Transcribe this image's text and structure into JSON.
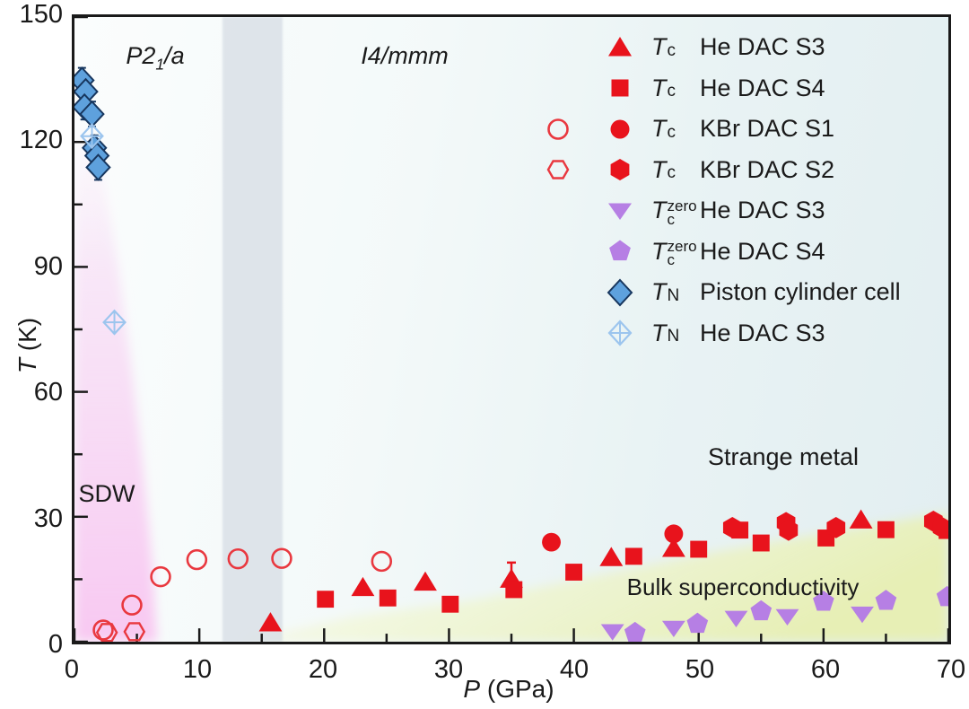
{
  "axes": {
    "x_letter": "P",
    "x_rest": " (GPa)",
    "y_letter": "T",
    "y_rest": " (K)",
    "xlim": [
      0,
      70
    ],
    "ylim": [
      0,
      150
    ],
    "x_major_ticks": [
      0,
      10,
      20,
      30,
      40,
      50,
      60,
      70
    ],
    "x_minor_ticks": [
      5,
      15,
      25,
      35,
      45,
      55,
      65
    ],
    "y_major_ticks": [
      0,
      30,
      60,
      90,
      120,
      150
    ],
    "y_minor_ticks": [
      15,
      45,
      75,
      105,
      135
    ]
  },
  "phases": {
    "p21a_pre": "P2",
    "p21a_sub": "1",
    "p21a_post": "/a",
    "i4mmm": "I4/mmm",
    "sdw": "SDW",
    "strange_metal": "Strange metal",
    "bulk_sc": "Bulk superconductivity"
  },
  "colors": {
    "red": "#e8131c",
    "red_open": "#e9383f",
    "purple": "#b67fe4",
    "blue_fill": "#5ea1dd",
    "blue_stroke": "#17365e",
    "light_blue": "#9cc5ee",
    "gray_band": "#ccd3dc",
    "axis": "#1a1a1a"
  },
  "legend": [
    {
      "open_marker": null,
      "marker": "triangle-up",
      "fill": "#e8131c",
      "stroke": "none",
      "sym_base": "T",
      "sym_sub": "c",
      "sym_sup": null,
      "label": "He DAC S3"
    },
    {
      "open_marker": null,
      "marker": "square",
      "fill": "#e8131c",
      "stroke": "none",
      "sym_base": "T",
      "sym_sub": "c",
      "sym_sup": null,
      "label": "He DAC S4"
    },
    {
      "open_marker": "circle-open",
      "marker": "circle",
      "fill": "#e8131c",
      "stroke": "none",
      "sym_base": "T",
      "sym_sub": "c",
      "sym_sup": null,
      "label": "KBr DAC S1"
    },
    {
      "open_marker": "hexagon-open",
      "marker": "hexagon",
      "fill": "#e8131c",
      "stroke": "none",
      "sym_base": "T",
      "sym_sub": "c",
      "sym_sup": null,
      "label": "KBr DAC S2"
    },
    {
      "open_marker": null,
      "marker": "triangle-down",
      "fill": "#b67fe4",
      "stroke": "none",
      "sym_base": "T",
      "sym_sub": "c",
      "sym_sup": "zero",
      "label": "He DAC S3"
    },
    {
      "open_marker": null,
      "marker": "pentagon",
      "fill": "#b67fe4",
      "stroke": "none",
      "sym_base": "T",
      "sym_sub": "c",
      "sym_sup": "zero",
      "label": "He DAC S4"
    },
    {
      "open_marker": null,
      "marker": "diamond",
      "fill": "#5ea1dd",
      "stroke": "#17365e",
      "sym_base": "T",
      "sym_sub": "N",
      "sym_sup": null,
      "label": "Piston cylinder cell"
    },
    {
      "open_marker": null,
      "marker": "diamond-crossed",
      "fill": "none",
      "stroke": "#9cc5ee",
      "sym_base": "T",
      "sym_sub": "N",
      "sym_sup": null,
      "label": "He DAC S3"
    }
  ],
  "chart_data": {
    "type": "scatter",
    "xlabel": "P (GPa)",
    "ylabel": "T (K)",
    "xlim": [
      0,
      70
    ],
    "ylim": [
      0,
      150
    ],
    "grid": false,
    "legend_position": "upper-right-inside",
    "regions": [
      {
        "name": "SDW",
        "type": "shaded-gradient-pink",
        "boundary_PT": [
          [
            0,
            128
          ],
          [
            2,
            118
          ],
          [
            3.5,
            90
          ],
          [
            4.6,
            65
          ],
          [
            5.5,
            42
          ],
          [
            6.2,
            20
          ],
          [
            6.6,
            0
          ]
        ]
      },
      {
        "name": "structural-transition-band",
        "type": "vertical-band-gray",
        "x_range_GPa": [
          11.8,
          16.6
        ]
      },
      {
        "name": "Bulk superconductivity",
        "type": "shaded-gradient-yellow-green",
        "boundary_PT": [
          [
            13.5,
            0
          ],
          [
            22,
            6
          ],
          [
            32,
            10
          ],
          [
            42,
            16
          ],
          [
            52,
            22
          ],
          [
            62,
            27
          ],
          [
            70,
            31
          ]
        ]
      },
      {
        "name": "Strange metal",
        "type": "background-cyan-upper-right"
      }
    ],
    "series": [
      {
        "name": "Tc He DAC S3",
        "marker": "triangle-up",
        "fill": "#e8131c",
        "points": [
          [
            15.7,
            4.5
          ],
          [
            23.1,
            13.0
          ],
          [
            28.1,
            14.3
          ],
          [
            35.0,
            15.0
          ],
          [
            43.0,
            20.2
          ],
          [
            48.0,
            22.4
          ],
          [
            63.0,
            29.2
          ]
        ],
        "error_bars": [
          {
            "x": 35.0,
            "ylo": 11.5,
            "yhi": 19.0
          }
        ]
      },
      {
        "name": "Tc He DAC S4",
        "marker": "square",
        "fill": "#e8131c",
        "points": [
          [
            20.1,
            10.2
          ],
          [
            25.1,
            10.5
          ],
          [
            30.1,
            9.0
          ],
          [
            35.2,
            12.5
          ],
          [
            40.0,
            16.7
          ],
          [
            44.8,
            20.5
          ],
          [
            50.0,
            22.2
          ],
          [
            53.3,
            26.8
          ],
          [
            55.0,
            23.7
          ],
          [
            60.2,
            24.9
          ],
          [
            65.0,
            26.9
          ],
          [
            69.9,
            26.7
          ]
        ]
      },
      {
        "name": "Tc KBr DAC S1 (open)",
        "marker": "circle-open",
        "stroke": "#e9383f",
        "points": [
          [
            2.3,
            2.8
          ],
          [
            4.6,
            8.8
          ],
          [
            6.9,
            15.6
          ],
          [
            9.8,
            19.7
          ],
          [
            13.1,
            19.9
          ],
          [
            16.6,
            20.0
          ],
          [
            24.6,
            19.3
          ]
        ]
      },
      {
        "name": "Tc KBr DAC S1 (filled)",
        "marker": "circle",
        "fill": "#e8131c",
        "points": [
          [
            38.2,
            23.9
          ],
          [
            48.0,
            25.9
          ]
        ]
      },
      {
        "name": "Tc KBr DAC S2 (open)",
        "marker": "hexagon-open",
        "stroke": "#e9383f",
        "points": [
          [
            2.6,
            2.2
          ],
          [
            4.8,
            2.4
          ]
        ]
      },
      {
        "name": "Tc KBr DAC S2 (filled)",
        "marker": "hexagon",
        "fill": "#e8131c",
        "points": [
          [
            52.7,
            27.4
          ],
          [
            57.0,
            28.6
          ],
          [
            57.2,
            26.8
          ],
          [
            61.0,
            27.4
          ],
          [
            68.8,
            28.9
          ],
          [
            69.5,
            27.4
          ]
        ]
      },
      {
        "name": "Tc-zero He DAC S3",
        "marker": "triangle-down",
        "fill": "#b67fe4",
        "points": [
          [
            43.1,
            2.4
          ],
          [
            48.0,
            3.2
          ],
          [
            53.0,
            5.6
          ],
          [
            57.1,
            6.0
          ],
          [
            63.1,
            6.6
          ]
        ]
      },
      {
        "name": "Tc-zero He DAC S4",
        "marker": "pentagon",
        "fill": "#b67fe4",
        "points": [
          [
            44.9,
            2.1
          ],
          [
            49.9,
            4.3
          ],
          [
            55.0,
            7.3
          ],
          [
            60.0,
            9.6
          ],
          [
            65.0,
            9.8
          ],
          [
            69.9,
            10.7
          ]
        ]
      },
      {
        "name": "TN Piston cylinder cell",
        "marker": "diamond",
        "fill": "#5ea1dd",
        "stroke": "#17365e",
        "error_K": 3,
        "points": [
          [
            0.6,
            134.8
          ],
          [
            0.9,
            132.1
          ],
          [
            0.8,
            128.4
          ],
          [
            1.4,
            126.7
          ],
          [
            1.6,
            118.6
          ],
          [
            1.8,
            116.7
          ],
          [
            1.9,
            113.9
          ]
        ]
      },
      {
        "name": "TN He DAC S3",
        "marker": "diamond-crossed",
        "stroke": "#9cc5ee",
        "points": [
          [
            1.4,
            121.4
          ],
          [
            3.2,
            76.7
          ]
        ]
      }
    ]
  }
}
